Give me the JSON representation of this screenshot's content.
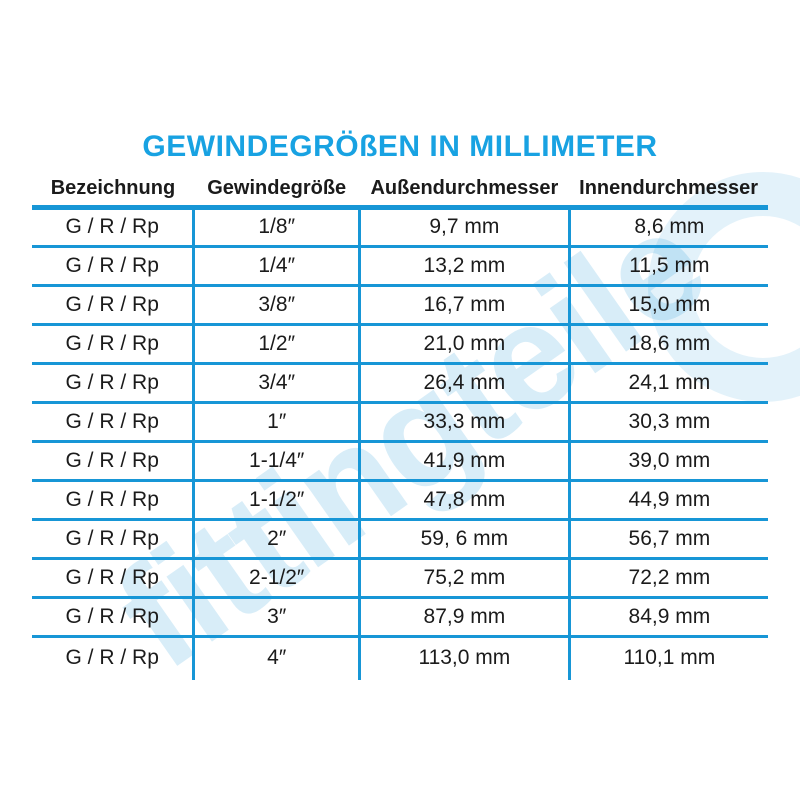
{
  "page": {
    "title": "GEWINDEGRÖßEN IN MILLIMETER",
    "watermark": "fittingteile"
  },
  "colors": {
    "line_blue": "#1796d6",
    "title_blue": "#18a2e2",
    "text_black": "#1b1b1b"
  },
  "table": {
    "headers": [
      "Bezeichnung",
      "Gewindegröße",
      "Außendurchmesser",
      "Innendurchmesser"
    ],
    "column_keys": [
      "bezeichnung",
      "gewindegroesse",
      "aussendurchmesser",
      "innendurchmesser"
    ],
    "rows": [
      [
        "G / R / Rp",
        "1/8″",
        "9,7 mm",
        "8,6 mm"
      ],
      [
        "G / R / Rp",
        "1/4″",
        "13,2 mm",
        "11,5 mm"
      ],
      [
        "G / R / Rp",
        "3/8″",
        "16,7 mm",
        "15,0 mm"
      ],
      [
        "G / R / Rp",
        "1/2″",
        "21,0 mm",
        "18,6 mm"
      ],
      [
        "G / R / Rp",
        "3/4″",
        "26,4 mm",
        "24,1 mm"
      ],
      [
        "G / R / Rp",
        "1″",
        "33,3 mm",
        "30,3 mm"
      ],
      [
        "G / R / Rp",
        "1-1/4″",
        "41,9 mm",
        "39,0 mm"
      ],
      [
        "G / R / Rp",
        "1-1/2″",
        "47,8 mm",
        "44,9 mm"
      ],
      [
        "G / R / Rp",
        "2″",
        "59, 6 mm",
        "56,7 mm"
      ],
      [
        "G / R / Rp",
        "2-1/2″",
        "75,2 mm",
        "72,2 mm"
      ],
      [
        "G / R / Rp",
        "3″",
        "87,9 mm",
        "84,9 mm"
      ],
      [
        "G / R / Rp",
        "4″",
        "113,0 mm",
        "110,1 mm"
      ]
    ]
  }
}
